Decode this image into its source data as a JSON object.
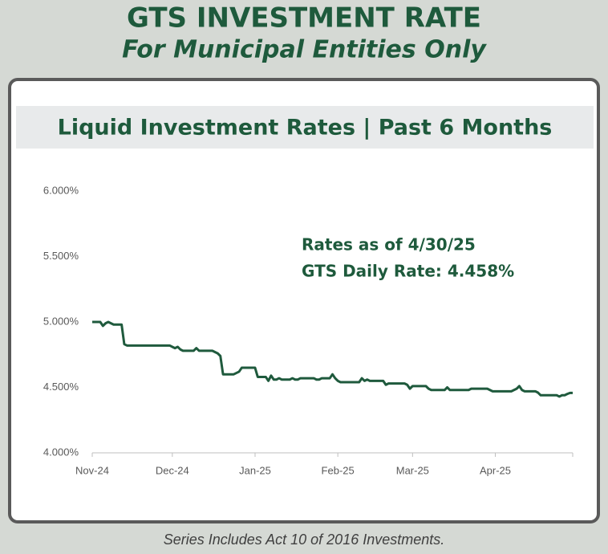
{
  "header": {
    "title": "GTS INVESTMENT RATE",
    "subtitle": "For Municipal Entities Only"
  },
  "chart_data": {
    "type": "line",
    "title": "Liquid Investment Rates | Past 6 Months",
    "annotations": [
      "Rates as of 4/30/25",
      "GTS Daily Rate: 4.458%"
    ],
    "color": "#1f5a3d",
    "ylim": [
      4,
      6
    ],
    "yticks": [
      {
        "value": 4,
        "label": "4.000%"
      },
      {
        "value": 4.5,
        "label": "4.500%"
      },
      {
        "value": 5,
        "label": "5.000%"
      },
      {
        "value": 5.5,
        "label": "5.500%"
      },
      {
        "value": 6,
        "label": "6.000%"
      }
    ],
    "categories": [
      "Nov-24",
      null,
      null,
      null,
      null,
      null,
      null,
      null,
      null,
      null,
      null,
      null,
      null,
      null,
      null,
      null,
      null,
      null,
      null,
      null,
      null,
      null,
      null,
      null,
      null,
      null,
      null,
      null,
      null,
      null,
      "Dec-24",
      null,
      null,
      null,
      null,
      null,
      null,
      null,
      null,
      null,
      null,
      null,
      null,
      null,
      null,
      null,
      null,
      null,
      null,
      null,
      null,
      null,
      null,
      null,
      null,
      null,
      null,
      null,
      null,
      null,
      null,
      "Jan-25",
      null,
      null,
      null,
      null,
      null,
      null,
      null,
      null,
      null,
      null,
      null,
      null,
      null,
      null,
      null,
      null,
      null,
      null,
      null,
      null,
      null,
      null,
      null,
      null,
      null,
      null,
      null,
      null,
      null,
      null,
      "Feb-25",
      null,
      null,
      null,
      null,
      null,
      null,
      null,
      null,
      null,
      null,
      null,
      null,
      null,
      null,
      null,
      null,
      null,
      null,
      null,
      null,
      null,
      null,
      null,
      null,
      null,
      null,
      null,
      "Mar-25",
      null,
      null,
      null,
      null,
      null,
      null,
      null,
      null,
      null,
      null,
      null,
      null,
      null,
      null,
      null,
      null,
      null,
      null,
      null,
      null,
      null,
      null,
      null,
      null,
      null,
      null,
      null,
      null,
      null,
      null,
      "Apr-25",
      null,
      null,
      null,
      null,
      null,
      null,
      null,
      null,
      null,
      null,
      null,
      null,
      null,
      null,
      null,
      null,
      null,
      null,
      null,
      null,
      null,
      null,
      null,
      null,
      null,
      null,
      null,
      null,
      null
    ],
    "values": [
      5.0,
      5.0,
      5.0,
      5.0,
      4.97,
      4.99,
      5.0,
      4.99,
      4.98,
      4.98,
      4.98,
      4.98,
      4.83,
      4.82,
      4.82,
      4.82,
      4.82,
      4.82,
      4.82,
      4.82,
      4.82,
      4.82,
      4.82,
      4.82,
      4.82,
      4.82,
      4.82,
      4.82,
      4.82,
      4.82,
      4.81,
      4.8,
      4.81,
      4.79,
      4.78,
      4.78,
      4.78,
      4.78,
      4.78,
      4.8,
      4.78,
      4.78,
      4.78,
      4.78,
      4.78,
      4.78,
      4.77,
      4.76,
      4.74,
      4.6,
      4.6,
      4.6,
      4.6,
      4.6,
      4.61,
      4.62,
      4.65,
      4.65,
      4.65,
      4.65,
      4.65,
      4.65,
      4.58,
      4.58,
      4.58,
      4.58,
      4.55,
      4.59,
      4.56,
      4.56,
      4.57,
      4.56,
      4.56,
      4.56,
      4.56,
      4.57,
      4.56,
      4.56,
      4.57,
      4.57,
      4.57,
      4.57,
      4.57,
      4.57,
      4.56,
      4.56,
      4.57,
      4.57,
      4.57,
      4.57,
      4.6,
      4.57,
      4.55,
      4.54,
      4.54,
      4.54,
      4.54,
      4.54,
      4.54,
      4.54,
      4.54,
      4.57,
      4.55,
      4.56,
      4.55,
      4.55,
      4.55,
      4.55,
      4.55,
      4.55,
      4.52,
      4.53,
      4.53,
      4.53,
      4.53,
      4.53,
      4.53,
      4.53,
      4.52,
      4.49,
      4.51,
      4.51,
      4.51,
      4.51,
      4.51,
      4.51,
      4.49,
      4.48,
      4.48,
      4.48,
      4.48,
      4.48,
      4.48,
      4.5,
      4.48,
      4.48,
      4.48,
      4.48,
      4.48,
      4.48,
      4.48,
      4.48,
      4.49,
      4.49,
      4.49,
      4.49,
      4.49,
      4.49,
      4.49,
      4.48,
      4.47,
      4.47,
      4.47,
      4.47,
      4.47,
      4.47,
      4.47,
      4.47,
      4.48,
      4.49,
      4.51,
      4.48,
      4.47,
      4.47,
      4.47,
      4.47,
      4.47,
      4.46,
      4.44,
      4.44,
      4.44,
      4.44,
      4.44,
      4.44,
      4.44,
      4.43,
      4.44,
      4.44,
      4.45,
      4.458,
      4.458
    ]
  },
  "footer": "Series Includes Act 10 of 2016 Investments."
}
